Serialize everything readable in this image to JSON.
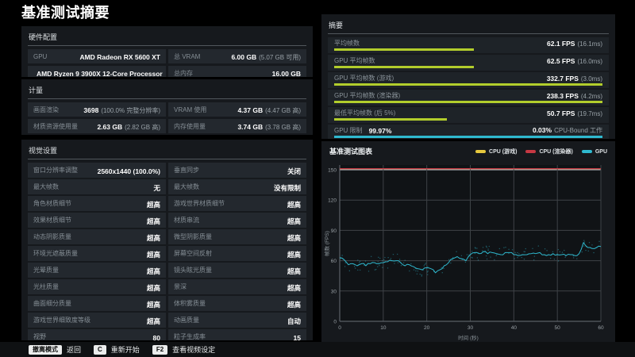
{
  "page": {
    "title": "基准测试摘要"
  },
  "hardware": {
    "title": "硬件配置",
    "rows": [
      [
        {
          "label": "GPU",
          "value": "AMD Radeon RX 5600 XT",
          "extra": ""
        },
        {
          "label": "总 VRAM",
          "value": "6.00 GB",
          "extra": "(5.07 GB 可用)"
        }
      ],
      [
        {
          "label": "CPU",
          "value": "AMD Ryzen 9 3900X 12-Core Processor",
          "extra": ""
        },
        {
          "label": "总内存",
          "value": "16.00 GB",
          "extra": ""
        }
      ]
    ]
  },
  "metrics": {
    "title": "计量",
    "rows": [
      [
        {
          "label": "画面渲染",
          "value": "3698",
          "extra": "(100.0% 完整分辨率)"
        },
        {
          "label": "VRAM 使用",
          "value": "4.37 GB",
          "extra": "(4.47 GB 高)"
        }
      ],
      [
        {
          "label": "材质资源使用量",
          "value": "2.63 GB",
          "extra": "(2.82 GB 高)"
        },
        {
          "label": "内存使用量",
          "value": "3.74 GB",
          "extra": "(3.78 GB 高)"
        }
      ]
    ]
  },
  "visual_settings": {
    "title": "视觉设置",
    "rows": [
      [
        {
          "label": "窗口分辨率调整",
          "value": "2560x1440 (100.0%)"
        },
        {
          "label": "垂直同步",
          "value": "关闭"
        }
      ],
      [
        {
          "label": "最大帧数",
          "value": "无"
        },
        {
          "label": "最大帧数",
          "value": "没有限制"
        }
      ],
      [
        {
          "label": "角色材质细节",
          "value": "超高"
        },
        {
          "label": "游戏世界材质细节",
          "value": "超高"
        }
      ],
      [
        {
          "label": "效果材质细节",
          "value": "超高"
        },
        {
          "label": "材质串流",
          "value": "超高"
        }
      ],
      [
        {
          "label": "动态阴影质量",
          "value": "超高"
        },
        {
          "label": "微型阴影质量",
          "value": "超高"
        }
      ],
      [
        {
          "label": "环境光遮蔽质量",
          "value": "超高"
        },
        {
          "label": "屏幕空间反射",
          "value": "超高"
        }
      ],
      [
        {
          "label": "光晕质量",
          "value": "超高"
        },
        {
          "label": "镜头眩光质量",
          "value": "超高"
        }
      ],
      [
        {
          "label": "光柱质量",
          "value": "超高"
        },
        {
          "label": "景深",
          "value": "超高"
        }
      ],
      [
        {
          "label": "曲面细分质量",
          "value": "超高"
        },
        {
          "label": "体积雾质量",
          "value": "超高"
        }
      ],
      [
        {
          "label": "游戏世界细致度等级",
          "value": "超高"
        },
        {
          "label": "动画质量",
          "value": "自动"
        }
      ],
      [
        {
          "label": "视野",
          "value": "80"
        },
        {
          "label": "粒子生成率",
          "value": "15"
        }
      ]
    ]
  },
  "summary": {
    "title": "摘要",
    "bar_green": "#b2cd2c",
    "bar_cyan": "#2fb9cf",
    "rows": [
      {
        "label": "平均帧数",
        "value": "62.1 FPS",
        "extra": "(16.1ms)",
        "bar_pct": 52,
        "bar": "green"
      },
      {
        "label": "GPU 平均帧数",
        "value": "62.5 FPS",
        "extra": "(16.0ms)",
        "bar_pct": 52,
        "bar": "green"
      },
      {
        "label": "GPU 平均帧数 (游戏)",
        "value": "332.7 FPS",
        "extra": "(3.0ms)",
        "bar_pct": 100,
        "bar": "green"
      },
      {
        "label": "GPU 平均帧数 (渲染器)",
        "value": "238.3 FPS",
        "extra": "(4.2ms)",
        "bar_pct": 100,
        "bar": "green"
      },
      {
        "label": "最低平均帧数 (后 5%)",
        "value": "50.7 FPS",
        "extra": "(19.7ms)",
        "bar_pct": 42,
        "bar": "green"
      },
      {
        "label": "GPU 限制",
        "label_value": "99.97%",
        "right": "0.03%",
        "right_extra": "CPU-Bound 工作",
        "bar_pct": 100,
        "bar": "cyan"
      }
    ]
  },
  "chart_data": {
    "type": "line",
    "title": "基准测试图表",
    "xlabel": "时间 (秒)",
    "ylabel": "帧数 (FPS)",
    "xlim": [
      0,
      60
    ],
    "ylim": [
      0,
      150
    ],
    "xticks": [
      0,
      10,
      20,
      30,
      40,
      50,
      60
    ],
    "yticks": [
      0,
      30,
      60,
      90,
      120,
      150
    ],
    "grid": true,
    "legend_position": "top-right",
    "series": [
      {
        "name": "CPU (游戏)",
        "color": "#e6c83e",
        "type": "constant",
        "value": 150
      },
      {
        "name": "CPU (渲染器)",
        "color": "#c63843",
        "type": "constant",
        "value": 150
      },
      {
        "name": "GPU",
        "color": "#2fb9cf",
        "x_step": 1,
        "values": [
          63,
          61,
          56,
          57,
          55,
          57,
          55,
          57,
          58,
          57,
          58,
          59,
          60,
          60,
          58,
          55,
          56,
          54,
          52,
          51,
          53,
          52,
          48,
          51,
          55,
          58,
          62,
          64,
          62,
          60,
          66,
          68,
          67,
          69,
          67,
          68,
          67,
          66,
          68,
          68,
          66,
          65,
          66,
          66,
          67,
          67,
          68,
          66,
          66,
          67,
          66,
          66,
          65,
          66,
          65,
          67,
          78,
          73,
          72,
          73,
          74
        ]
      }
    ]
  },
  "footer": {
    "items": [
      {
        "key": "撤离模式",
        "label": "返回"
      },
      {
        "key": "C",
        "label": "重新开始"
      },
      {
        "key": "F2",
        "label": "查看视频设定"
      }
    ]
  }
}
